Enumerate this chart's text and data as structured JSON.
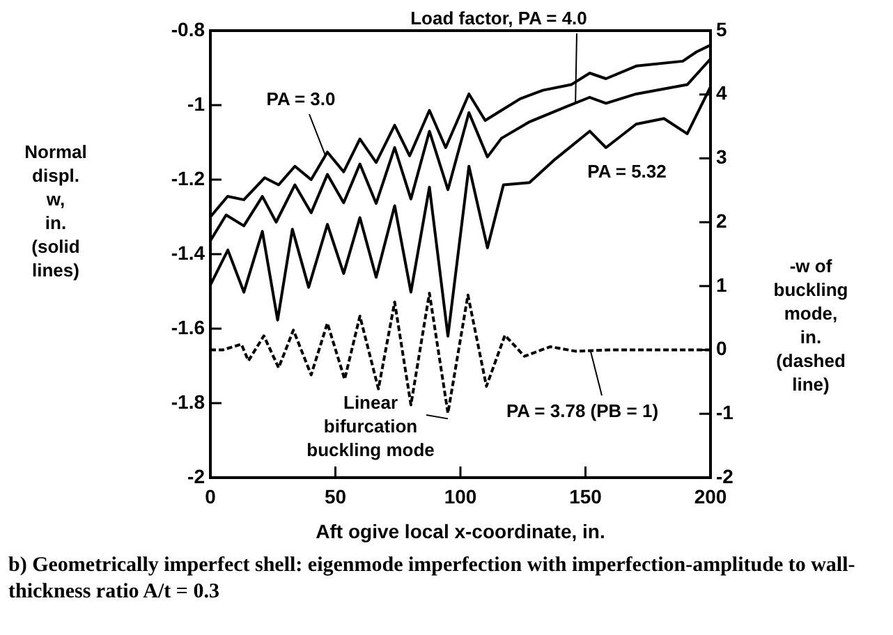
{
  "chart_data": {
    "type": "line",
    "xlabel": "Aft ogive local x-coordinate, in.",
    "ylabel": "Normal displ. w, in. (solid lines)",
    "y2label": "-w of buckling mode, in. (dashed line)",
    "xlim": [
      0,
      200
    ],
    "xticks": [
      0,
      50,
      100,
      150,
      200
    ],
    "ylim": [
      -2,
      -0.8
    ],
    "yticks": [
      -2,
      -1.8,
      -1.6,
      -1.4,
      -1.2,
      -1,
      -0.8
    ],
    "y2lim": [
      -2,
      5
    ],
    "y2ticks": [
      -2,
      -1,
      0,
      1,
      2,
      3,
      4,
      5
    ],
    "grid": false,
    "legend": false,
    "marker": "none",
    "series": [
      {
        "name": "PA = 3.0",
        "color": "#000000",
        "line_style": "solid",
        "x": [
          0,
          6.9,
          13.4,
          21.7,
          27.3,
          33.8,
          40.3,
          46.8,
          53.3,
          59.8,
          66.3,
          73.7,
          79.7,
          87.6,
          94.1,
          103.4,
          109.9,
          116.4,
          123.9,
          133,
          144.3,
          151.7,
          158.2,
          170.3,
          188.9,
          194.4,
          200
        ],
        "values": [
          -1.3,
          -1.245,
          -1.254,
          -1.195,
          -1.214,
          -1.164,
          -1.2,
          -1.126,
          -1.179,
          -1.091,
          -1.154,
          -1.054,
          -1.136,
          -1.014,
          -1.114,
          -0.97,
          -1.041,
          -1.014,
          -0.983,
          -0.96,
          -0.945,
          -0.914,
          -0.929,
          -0.895,
          -0.882,
          -0.857,
          -0.839
        ]
      },
      {
        "name": "Load factor, PA = 4.0",
        "color": "#000000",
        "line_style": "solid",
        "x": [
          0,
          6.3,
          13.4,
          20.8,
          26.3,
          33.8,
          40.3,
          46.8,
          53.3,
          59.8,
          66.3,
          73.7,
          80.2,
          87.6,
          95,
          103.4,
          110.8,
          116.4,
          127.6,
          142.4,
          151.7,
          158.2,
          170.3,
          190.7,
          200
        ],
        "values": [
          -1.364,
          -1.295,
          -1.324,
          -1.245,
          -1.314,
          -1.214,
          -1.289,
          -1.186,
          -1.262,
          -1.158,
          -1.264,
          -1.114,
          -1.252,
          -1.07,
          -1.227,
          -1.02,
          -1.139,
          -1.089,
          -1.045,
          -1.004,
          -0.979,
          -0.995,
          -0.97,
          -0.945,
          -0.876
        ]
      },
      {
        "name": "PA = 5.32",
        "color": "#000000",
        "line_style": "solid",
        "x": [
          0,
          7,
          13.4,
          20.8,
          26.9,
          32.8,
          39.3,
          46.8,
          53.3,
          59.8,
          66.3,
          73.7,
          80.2,
          87.6,
          95,
          103.4,
          110.8,
          117.2,
          127.6,
          137.9,
          151.7,
          158.2,
          170.3,
          181.4,
          190.7,
          200
        ],
        "values": [
          -1.483,
          -1.389,
          -1.502,
          -1.339,
          -1.577,
          -1.333,
          -1.489,
          -1.32,
          -1.452,
          -1.302,
          -1.462,
          -1.27,
          -1.502,
          -1.22,
          -1.62,
          -1.164,
          -1.383,
          -1.214,
          -1.208,
          -1.145,
          -1.07,
          -1.114,
          -1.051,
          -1.036,
          -1.077,
          -0.951
        ]
      },
      {
        "name": "PA = 3.78 (PB = 1)",
        "color": "#000000",
        "line_style": "dashed",
        "axis": "y2",
        "x": [
          0,
          5,
          12.4,
          15.2,
          21.4,
          27.3,
          33.2,
          40.3,
          46.8,
          53.7,
          59.8,
          67.2,
          73.7,
          80.2,
          87.6,
          95,
          103,
          110.4,
          117.8,
          125.6,
          133.1,
          136,
          146,
          160,
          200
        ],
        "values": [
          0,
          0,
          0.09,
          -0.17,
          0.22,
          -0.28,
          0.31,
          -0.39,
          0.42,
          -0.46,
          0.53,
          -0.61,
          0.75,
          -0.86,
          0.89,
          -0.99,
          0.86,
          -0.57,
          0.23,
          -0.1,
          0.01,
          0.05,
          -0.02,
          0,
          0
        ]
      }
    ],
    "annotations": [
      "Linear bifurcation buckling mode",
      "b) Geometrically imperfect shell: eigenmode imperfection with imperfection-amplitude to wall-thickness ratio A/t = 0.3"
    ]
  }
}
